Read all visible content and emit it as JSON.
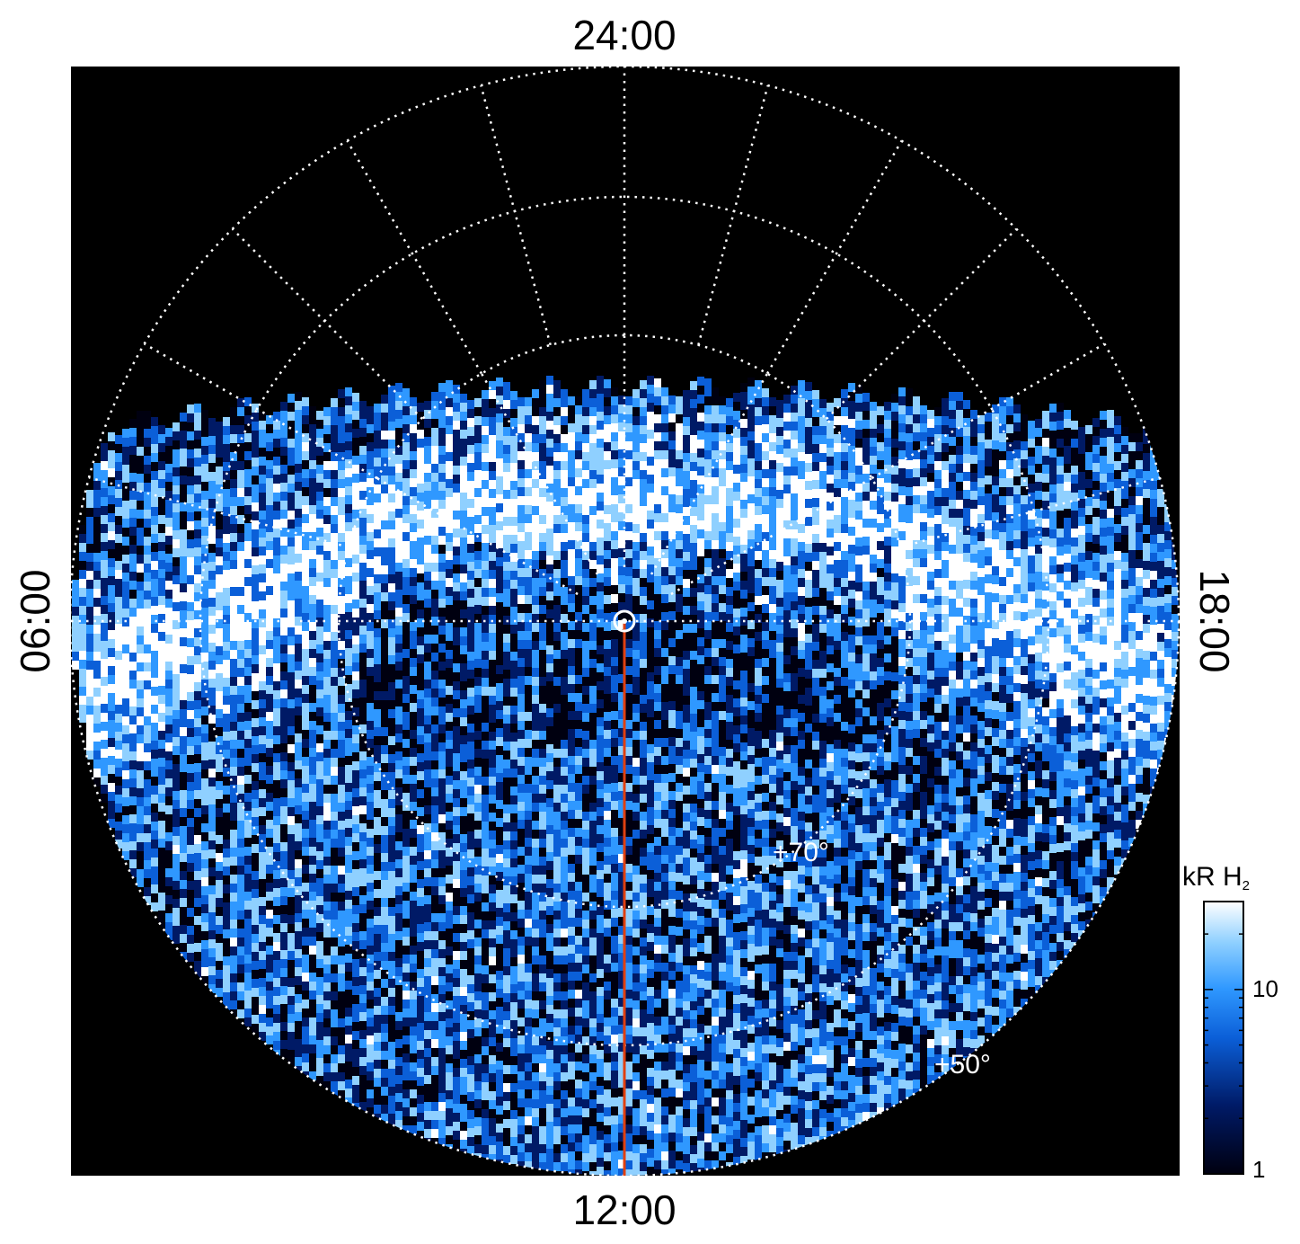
{
  "chart_data": {
    "type": "heatmap",
    "projection": "polar",
    "local_time_labels": {
      "top": "24:00",
      "bottom": "12:00",
      "left": "06:00",
      "right": "18:00"
    },
    "latitude_labels": [
      "+70°",
      "+50°"
    ],
    "grid": "on",
    "pole_marker": "sun symbol at pole",
    "reference_line_color": "#e04010",
    "colorbar": {
      "label_main": "kR H",
      "label_sub": "2",
      "scale": "log",
      "ticks": [
        "10",
        "1"
      ],
      "range": [
        1,
        30
      ],
      "colormap": [
        "#000010",
        "#001a66",
        "#0b5fd8",
        "#2f98ff",
        "#8fd0ff",
        "#ffffff"
      ]
    },
    "colors": {
      "background": "#000000",
      "grid": "#ffffff",
      "emission": "#2f98ff"
    }
  }
}
